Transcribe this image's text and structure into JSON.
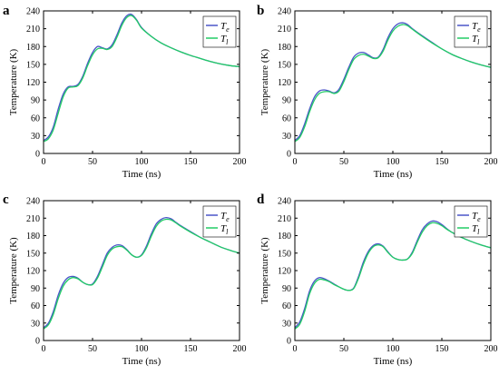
{
  "colors": {
    "series_e": "#4a55c8",
    "series_l": "#22cc66",
    "axis": "#000000",
    "background": "#ffffff"
  },
  "chart_data": [
    {
      "panel_label": "a",
      "type": "line",
      "xlabel": "Time (ns)",
      "ylabel": "Temperature (K)",
      "xlim": [
        0,
        200
      ],
      "ylim": [
        0,
        240
      ],
      "xticks": [
        0,
        50,
        100,
        150,
        200
      ],
      "yticks": [
        0,
        30,
        60,
        90,
        120,
        150,
        180,
        210,
        240
      ],
      "grid": false,
      "legend": "top-right",
      "x": [
        0,
        5,
        10,
        15,
        20,
        25,
        30,
        35,
        40,
        45,
        50,
        55,
        60,
        65,
        70,
        75,
        80,
        85,
        90,
        95,
        100,
        110,
        120,
        130,
        140,
        150,
        160,
        170,
        180,
        190,
        200
      ],
      "series": [
        {
          "name": "e",
          "values": [
            22,
            28,
            45,
            75,
            100,
            112,
            113,
            116,
            130,
            152,
            170,
            180,
            178,
            176,
            183,
            200,
            220,
            232,
            234,
            225,
            212,
            197,
            186,
            178,
            171,
            165,
            160,
            155,
            151,
            148,
            146
          ]
        },
        {
          "name": "l",
          "values": [
            20,
            25,
            40,
            68,
            95,
            110,
            112,
            114,
            127,
            148,
            166,
            176,
            177,
            175,
            180,
            196,
            216,
            229,
            232,
            224,
            211,
            197,
            186,
            178,
            171,
            165,
            160,
            155,
            151,
            148,
            146
          ]
        }
      ]
    },
    {
      "panel_label": "b",
      "type": "line",
      "xlabel": "Time (ns)",
      "ylabel": "Temperature (K)",
      "xlim": [
        0,
        200
      ],
      "ylim": [
        0,
        240
      ],
      "xticks": [
        0,
        50,
        100,
        150,
        200
      ],
      "yticks": [
        0,
        30,
        60,
        90,
        120,
        150,
        180,
        210,
        240
      ],
      "grid": false,
      "legend": "top-right",
      "x": [
        0,
        5,
        10,
        15,
        20,
        25,
        30,
        35,
        40,
        45,
        50,
        55,
        60,
        65,
        70,
        75,
        80,
        85,
        90,
        95,
        100,
        105,
        110,
        115,
        120,
        130,
        140,
        150,
        160,
        170,
        180,
        190,
        200
      ],
      "series": [
        {
          "name": "e",
          "values": [
            22,
            30,
            50,
            75,
            95,
            105,
            107,
            105,
            102,
            108,
            125,
            145,
            162,
            169,
            170,
            166,
            161,
            162,
            175,
            195,
            210,
            218,
            220,
            217,
            210,
            198,
            187,
            176,
            167,
            160,
            154,
            149,
            145
          ]
        },
        {
          "name": "l",
          "values": [
            20,
            27,
            45,
            70,
            90,
            101,
            104,
            104,
            101,
            105,
            121,
            141,
            158,
            165,
            167,
            164,
            160,
            161,
            172,
            191,
            206,
            214,
            217,
            215,
            209,
            197,
            186,
            176,
            167,
            160,
            154,
            149,
            145
          ]
        }
      ]
    },
    {
      "panel_label": "c",
      "type": "line",
      "xlabel": "Time (ns)",
      "ylabel": "Temperature (K)",
      "xlim": [
        0,
        200
      ],
      "ylim": [
        0,
        240
      ],
      "xticks": [
        0,
        50,
        100,
        150,
        200
      ],
      "yticks": [
        0,
        30,
        60,
        90,
        120,
        150,
        180,
        210,
        240
      ],
      "grid": false,
      "legend": "top-right",
      "x": [
        0,
        5,
        10,
        15,
        20,
        25,
        30,
        35,
        40,
        45,
        50,
        55,
        60,
        65,
        70,
        75,
        80,
        85,
        90,
        95,
        100,
        105,
        110,
        115,
        120,
        125,
        130,
        135,
        140,
        150,
        160,
        170,
        180,
        190,
        200
      ],
      "series": [
        {
          "name": "e",
          "values": [
            22,
            30,
            50,
            78,
            98,
            108,
            110,
            107,
            100,
            96,
            97,
            110,
            130,
            150,
            160,
            164,
            163,
            156,
            147,
            143,
            147,
            162,
            183,
            200,
            208,
            211,
            209,
            203,
            197,
            187,
            177,
            169,
            161,
            155,
            150
          ]
        },
        {
          "name": "l",
          "values": [
            20,
            27,
            45,
            72,
            93,
            104,
            108,
            106,
            100,
            96,
            96,
            107,
            126,
            146,
            157,
            161,
            161,
            155,
            147,
            143,
            146,
            159,
            179,
            196,
            205,
            208,
            207,
            202,
            196,
            186,
            177,
            169,
            161,
            155,
            150
          ]
        }
      ]
    },
    {
      "panel_label": "d",
      "type": "line",
      "xlabel": "Time (ns)",
      "ylabel": "Temperature (K)",
      "xlim": [
        0,
        200
      ],
      "ylim": [
        0,
        240
      ],
      "xticks": [
        0,
        50,
        100,
        150,
        200
      ],
      "yticks": [
        0,
        30,
        60,
        90,
        120,
        150,
        180,
        210,
        240
      ],
      "grid": false,
      "legend": "top-right",
      "x": [
        0,
        5,
        10,
        15,
        20,
        25,
        30,
        35,
        40,
        45,
        50,
        55,
        60,
        65,
        70,
        75,
        80,
        85,
        90,
        95,
        100,
        105,
        110,
        115,
        120,
        125,
        130,
        135,
        140,
        145,
        150,
        155,
        160,
        170,
        180,
        190,
        200
      ],
      "series": [
        {
          "name": "e",
          "values": [
            22,
            32,
            55,
            85,
            102,
            108,
            106,
            102,
            97,
            92,
            88,
            86,
            90,
            110,
            135,
            153,
            163,
            166,
            162,
            152,
            143,
            139,
            138,
            140,
            152,
            172,
            190,
            200,
            205,
            204,
            199,
            192,
            186,
            177,
            170,
            164,
            159
          ]
        },
        {
          "name": "l",
          "values": [
            20,
            28,
            50,
            80,
            98,
            105,
            104,
            101,
            96,
            92,
            88,
            86,
            89,
            107,
            131,
            150,
            161,
            164,
            161,
            151,
            143,
            139,
            138,
            140,
            150,
            169,
            186,
            197,
            202,
            201,
            197,
            191,
            186,
            177,
            170,
            164,
            159
          ]
        }
      ]
    }
  ]
}
